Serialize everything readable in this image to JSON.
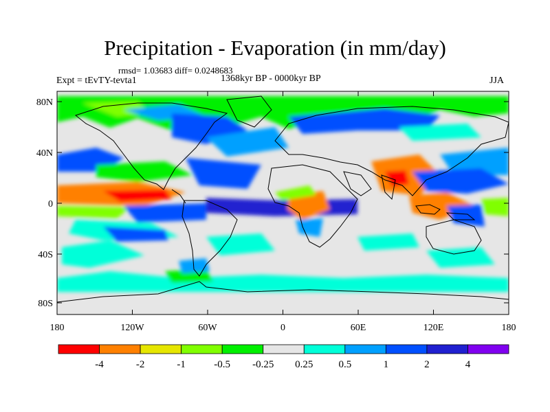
{
  "header": {
    "title": "Precipitation - Evaporation (in mm/day)",
    "stats": "rmsd= 1.03683 diff= 0.0248683",
    "experiment": "Expt = tEvTY-tevta1",
    "period": "1368kyr BP - 0000kyr BP",
    "season": "JJA"
  },
  "map": {
    "lat_ticks": [
      "80N",
      "40N",
      "0",
      "40S",
      "80S"
    ],
    "lon_ticks": [
      "180",
      "120W",
      "60W",
      "0",
      "60E",
      "120E",
      "180"
    ],
    "background_color": "#e6e6e6"
  },
  "colorbar": {
    "colors": [
      "#ff0000",
      "#ff8000",
      "#e6e600",
      "#80ff00",
      "#00f000",
      "#e6e6e6",
      "#00ffd9",
      "#00a0ff",
      "#0050ff",
      "#2020d0",
      "#8000f0"
    ],
    "labels": [
      "-4",
      "-2",
      "-1",
      "-0.5",
      "-0.25",
      "0.25",
      "0.5",
      "1",
      "2",
      "4"
    ]
  }
}
